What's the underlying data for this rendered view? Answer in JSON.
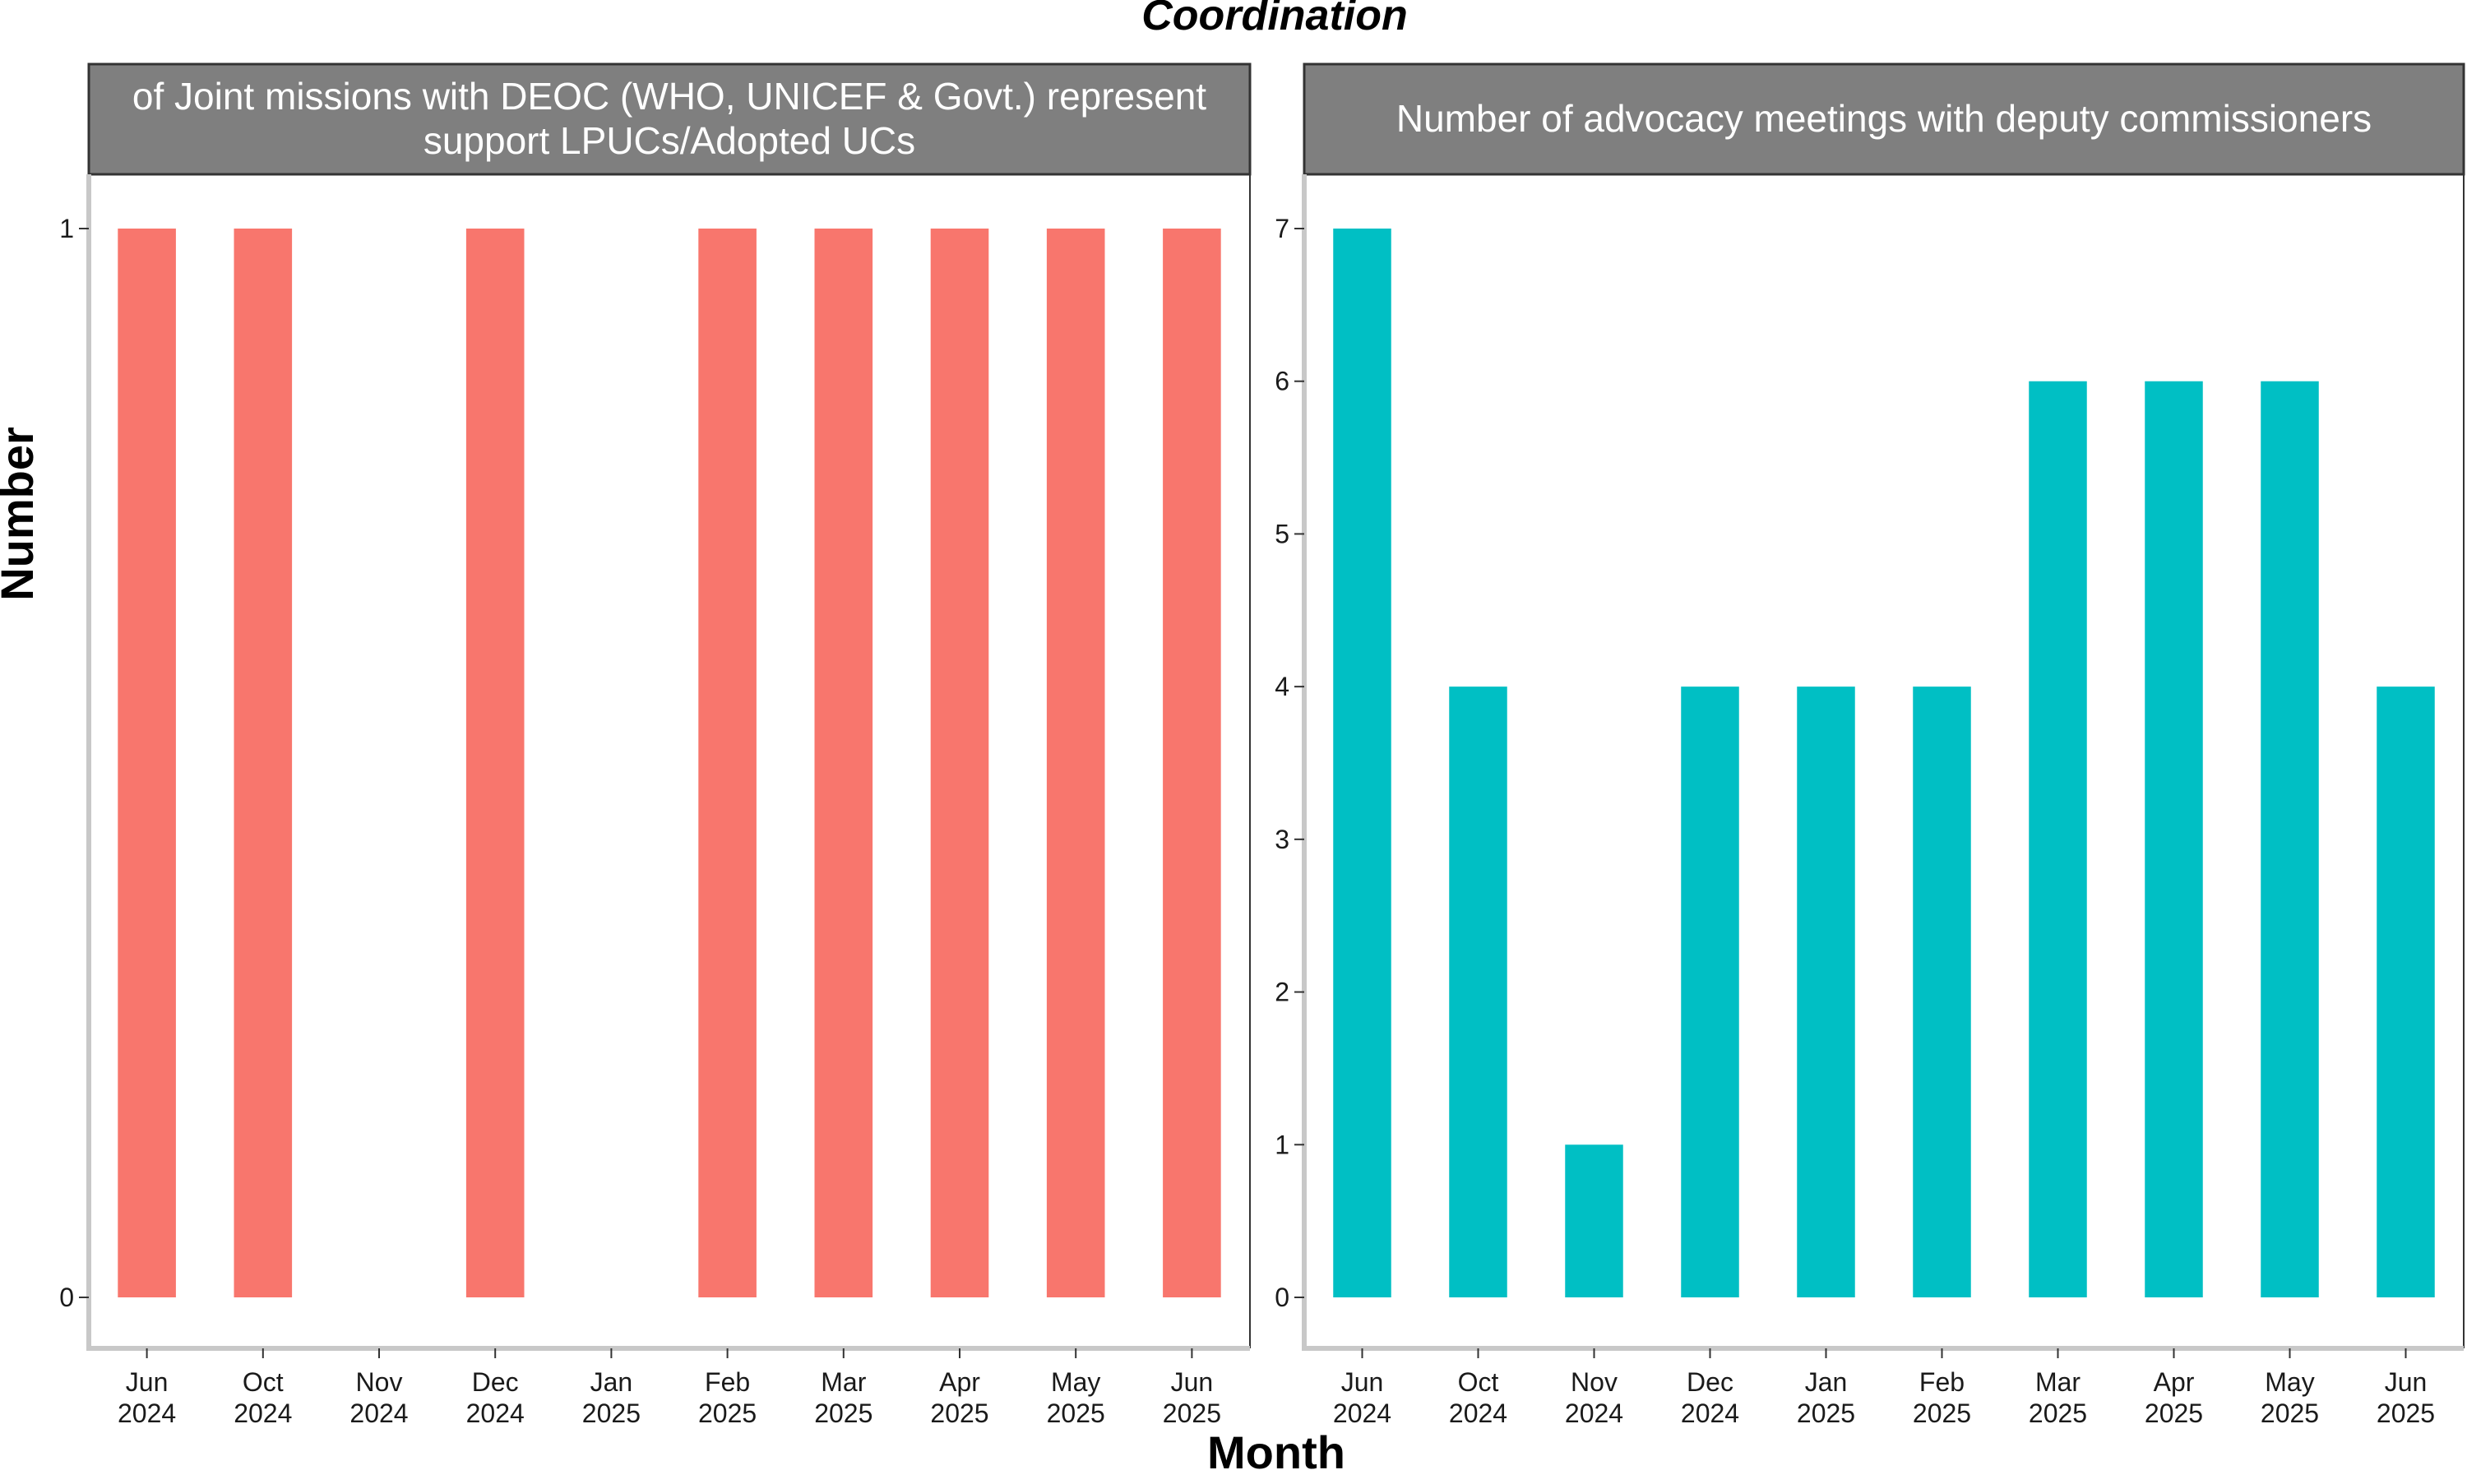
{
  "title": "Coordination",
  "xlabel": "Month",
  "ylabel": "Number",
  "chart_data": [
    {
      "type": "bar",
      "facet_title_line1": "of Joint missions with DEOC (WHO, UNICEF & Govt.) represent",
      "facet_title_line2": "support LPUCs/Adopted UCs",
      "color": "#F8766D",
      "categories": [
        {
          "month": "Jun",
          "year": "2024"
        },
        {
          "month": "Oct",
          "year": "2024"
        },
        {
          "month": "Nov",
          "year": "2024"
        },
        {
          "month": "Dec",
          "year": "2024"
        },
        {
          "month": "Jan",
          "year": "2025"
        },
        {
          "month": "Feb",
          "year": "2025"
        },
        {
          "month": "Mar",
          "year": "2025"
        },
        {
          "month": "Apr",
          "year": "2025"
        },
        {
          "month": "May",
          "year": "2025"
        },
        {
          "month": "Jun",
          "year": "2025"
        }
      ],
      "values": [
        1,
        1,
        null,
        1,
        null,
        1,
        1,
        1,
        1,
        1
      ],
      "ylim": [
        0,
        1
      ],
      "yticks": [
        0,
        1
      ],
      "grid": false
    },
    {
      "type": "bar",
      "facet_title_line1": "Number of advocacy meetings with deputy commissioners",
      "facet_title_line2": "",
      "color": "#00BFC4",
      "categories": [
        {
          "month": "Jun",
          "year": "2024"
        },
        {
          "month": "Oct",
          "year": "2024"
        },
        {
          "month": "Nov",
          "year": "2024"
        },
        {
          "month": "Dec",
          "year": "2024"
        },
        {
          "month": "Jan",
          "year": "2025"
        },
        {
          "month": "Feb",
          "year": "2025"
        },
        {
          "month": "Mar",
          "year": "2025"
        },
        {
          "month": "Apr",
          "year": "2025"
        },
        {
          "month": "May",
          "year": "2025"
        },
        {
          "month": "Jun",
          "year": "2025"
        }
      ],
      "values": [
        7,
        4,
        1,
        4,
        4,
        4,
        6,
        6,
        6,
        4
      ],
      "ylim": [
        0,
        7
      ],
      "yticks": [
        0,
        1,
        2,
        3,
        4,
        5,
        6,
        7
      ],
      "grid": false
    }
  ]
}
